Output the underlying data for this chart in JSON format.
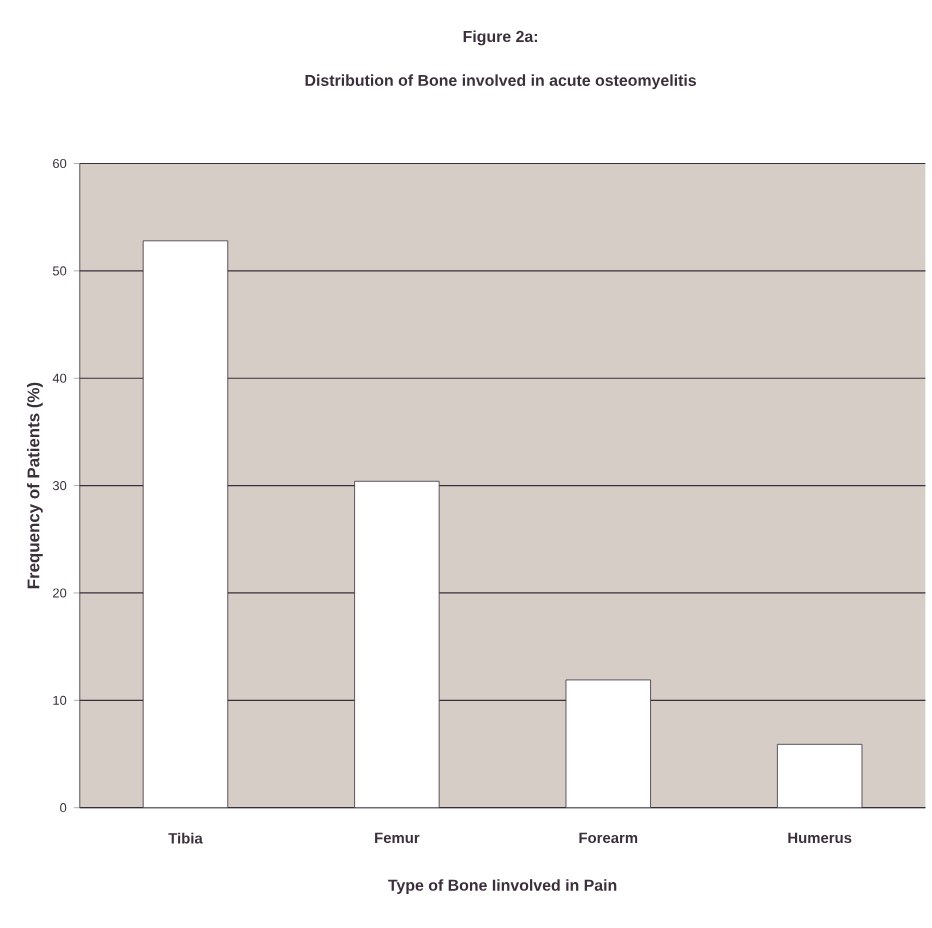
{
  "chart_data": {
    "type": "bar",
    "title": "Figure 2a:",
    "subtitle": "Distribution of Bone involved in acute osteomyelitis",
    "xlabel": "Type of Bone Iinvolved in Pain",
    "ylabel": "Frequency of Patients (%)",
    "categories": [
      "Tibia",
      "Femur",
      "Forearm",
      "Humerus"
    ],
    "values": [
      52.8,
      30.4,
      11.9,
      5.9
    ],
    "color": "#ffffff",
    "ylim": [
      0,
      60
    ],
    "yticks": [
      0,
      10,
      20,
      30,
      40,
      50,
      60
    ],
    "grid": "y"
  }
}
